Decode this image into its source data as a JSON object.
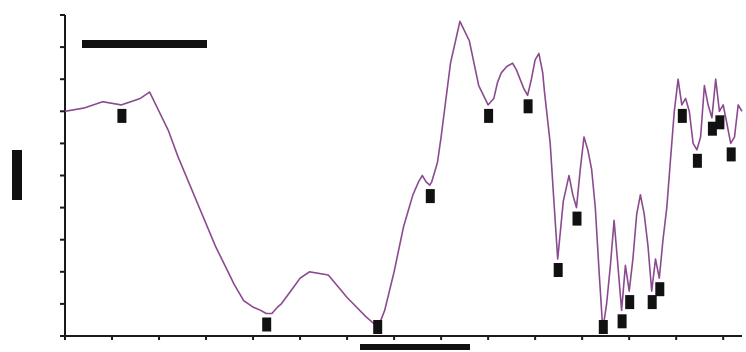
{
  "chart_data": {
    "type": "line",
    "title": "",
    "xlabel": "",
    "ylabel": "",
    "xlim": [
      4000,
      400
    ],
    "ylim": [
      0,
      100
    ],
    "grid": false,
    "series": [
      {
        "color": "#8a4a8e",
        "x": [
          4000,
          3900,
          3800,
          3700,
          3600,
          3550,
          3500,
          3450,
          3400,
          3300,
          3200,
          3100,
          3050,
          3000,
          2960,
          2930,
          2900,
          2870,
          2850,
          2800,
          2750,
          2700,
          2600,
          2500,
          2400,
          2360,
          2340,
          2300,
          2250,
          2200,
          2150,
          2120,
          2100,
          2090,
          2080,
          2060,
          2050,
          2040,
          2020,
          2000,
          1950,
          1900,
          1850,
          1800,
          1750,
          1720,
          1700,
          1680,
          1650,
          1620,
          1600,
          1580,
          1560,
          1540,
          1520,
          1500,
          1480,
          1460,
          1450,
          1420,
          1400,
          1380,
          1350,
          1320,
          1300,
          1280,
          1260,
          1240,
          1220,
          1200,
          1180,
          1160,
          1140,
          1120,
          1100,
          1080,
          1060,
          1040,
          1020,
          1000,
          980,
          960,
          940,
          920,
          900,
          880,
          860,
          840,
          820,
          800,
          780,
          760,
          740,
          720,
          700,
          680,
          660,
          640,
          620,
          600,
          580,
          560,
          540,
          520,
          500,
          480,
          460,
          440,
          420,
          400
        ],
        "y": [
          70,
          71,
          73,
          72,
          74,
          76,
          70,
          64,
          56,
          42,
          28,
          16,
          11,
          9,
          8,
          7,
          7,
          9,
          10,
          14,
          18,
          20,
          19,
          12,
          6,
          4,
          2,
          8,
          20,
          34,
          44,
          48,
          50,
          49,
          48,
          47,
          48,
          50,
          54,
          62,
          85,
          98,
          92,
          78,
          72,
          74,
          79,
          82,
          84,
          85,
          83,
          80,
          77,
          75,
          80,
          86,
          88,
          82,
          76,
          60,
          42,
          24,
          42,
          50,
          44,
          40,
          52,
          62,
          58,
          52,
          40,
          20,
          2,
          10,
          22,
          36,
          22,
          8,
          22,
          14,
          24,
          38,
          44,
          38,
          28,
          14,
          24,
          18,
          30,
          40,
          55,
          70,
          80,
          72,
          74,
          70,
          60,
          58,
          62,
          78,
          72,
          68,
          80,
          70,
          72,
          66,
          60,
          62,
          72,
          70
        ]
      }
    ]
  }
}
